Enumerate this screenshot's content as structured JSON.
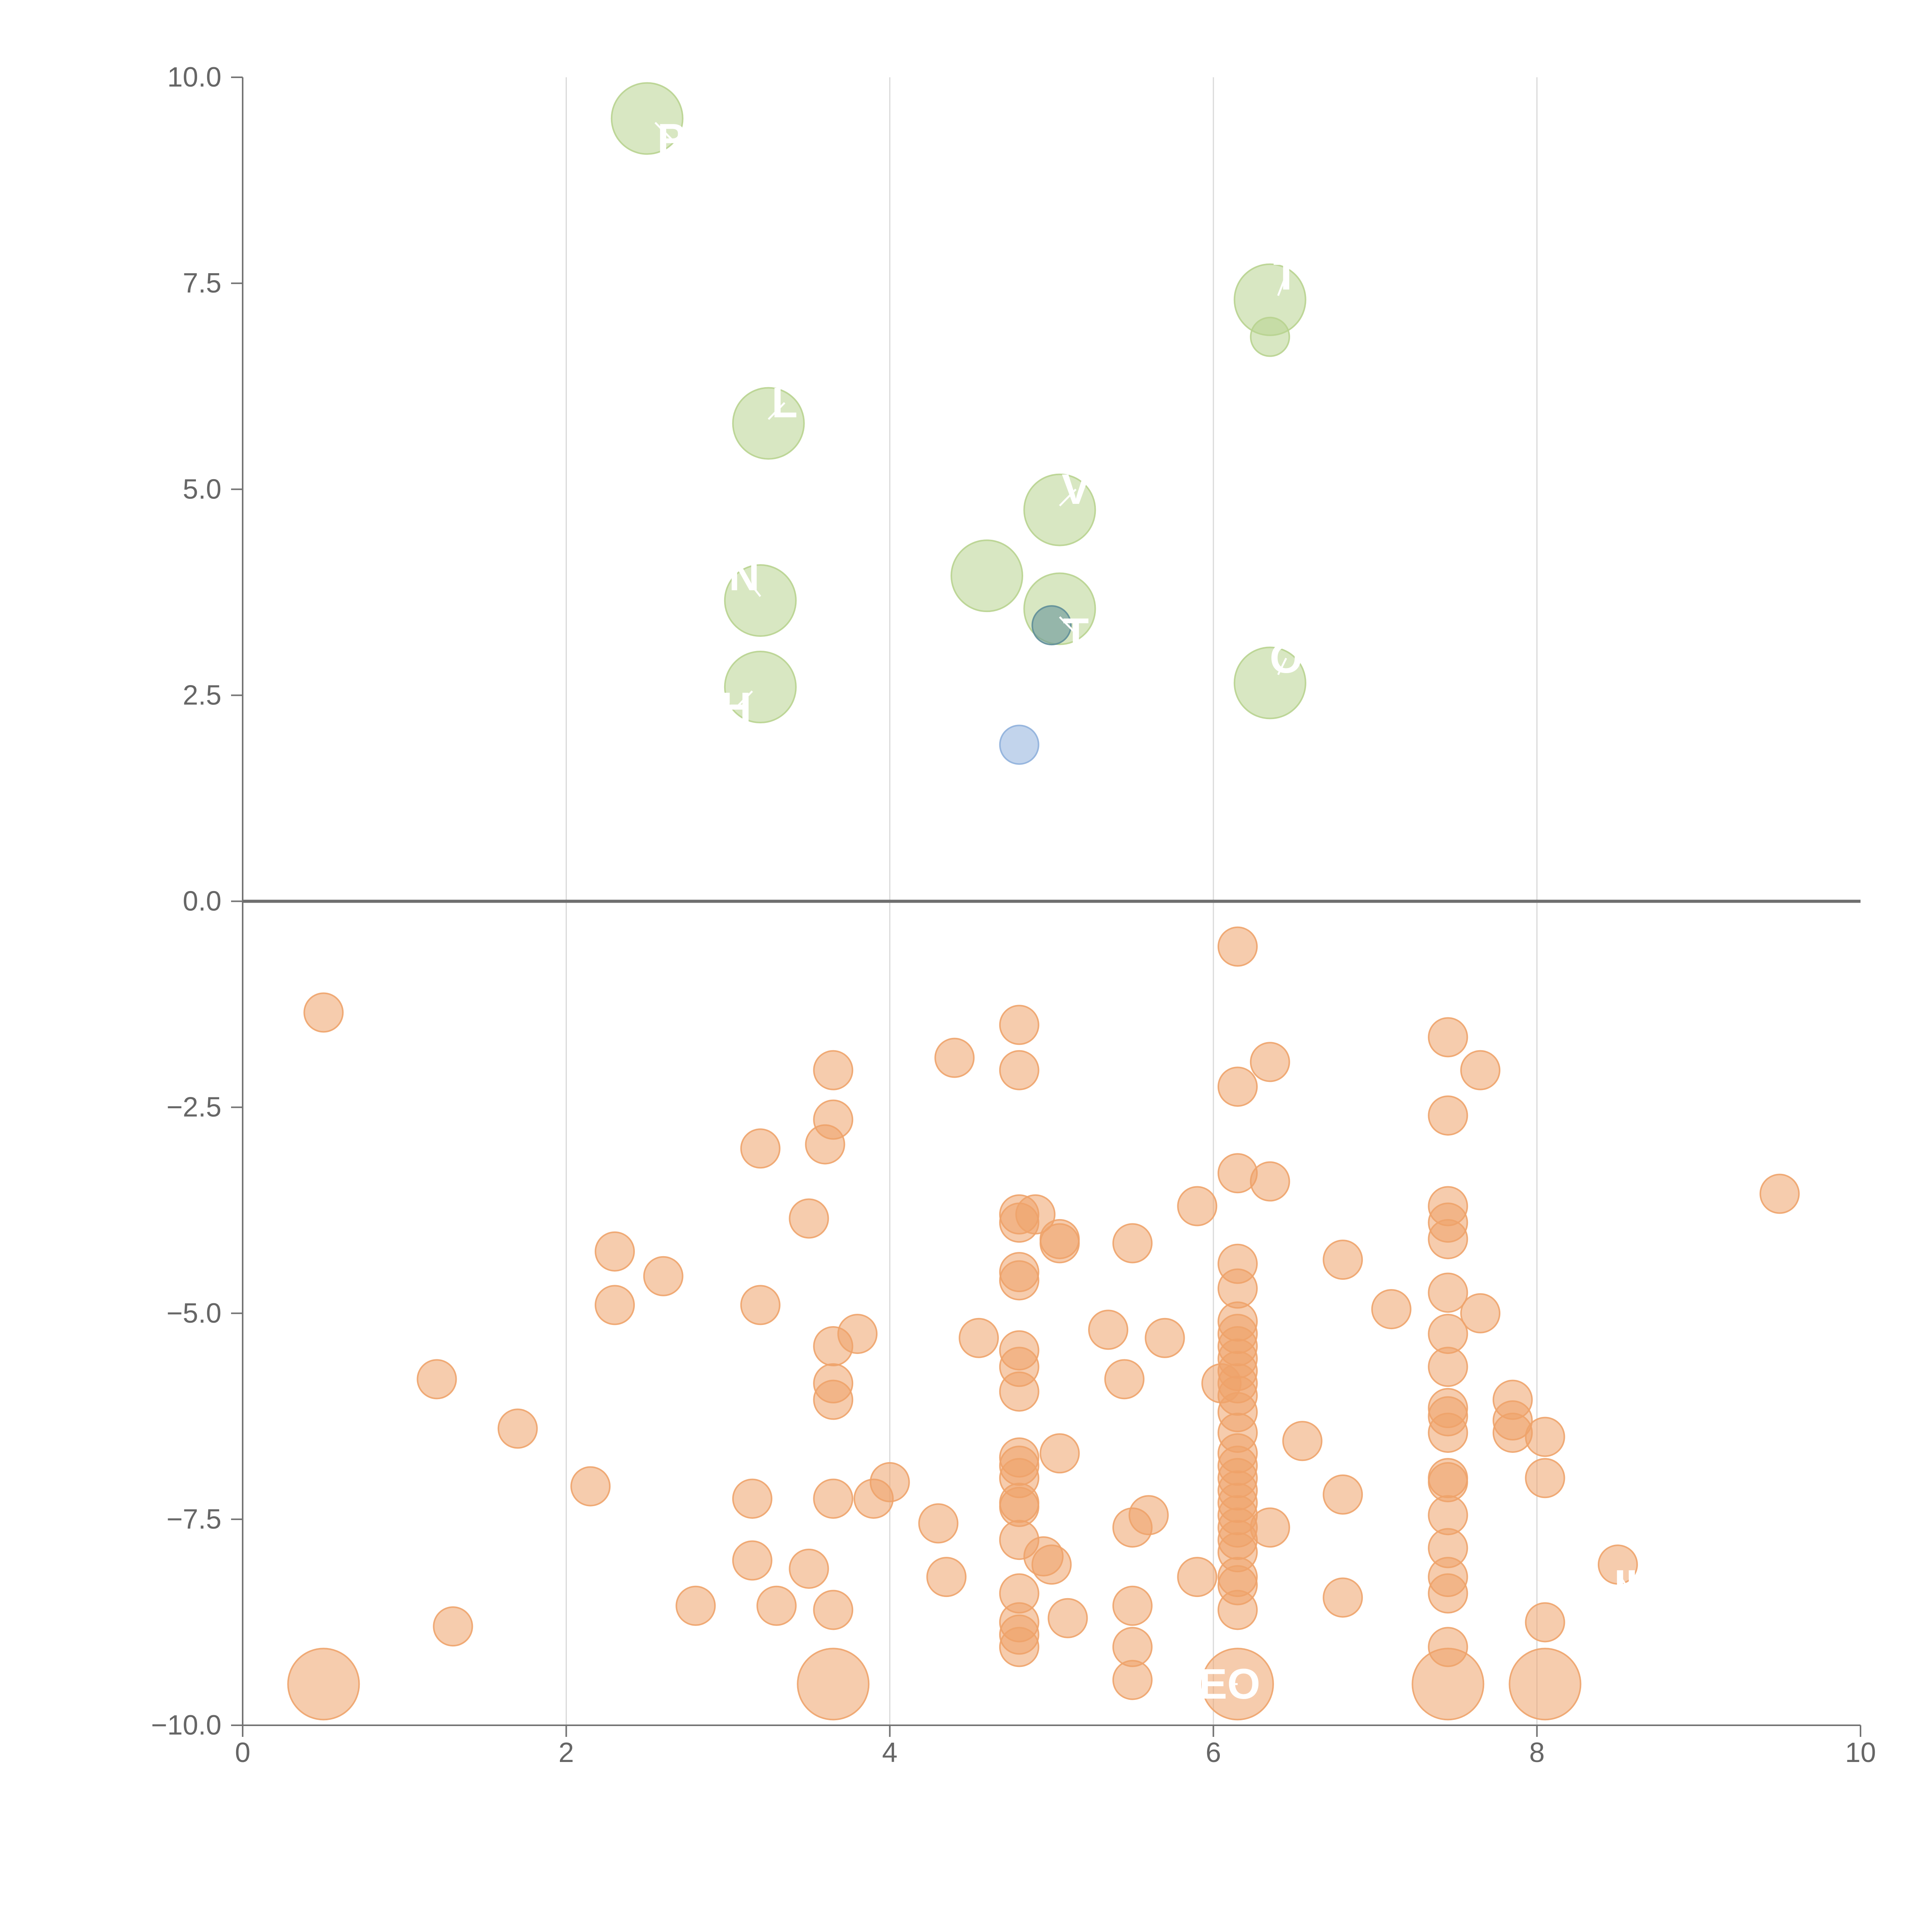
{
  "colors": {
    "positive": "#b8d38f",
    "negative": "#eea36a",
    "blue": "#8fb0dc",
    "teal": "#5f8e98",
    "grid": "#d9d9d9",
    "axis": "#737373",
    "zero_line": "#6e6e6e",
    "label": "#ffffff"
  },
  "chart_data": {
    "type": "scatter",
    "title": "",
    "xlabel": "",
    "ylabel": "",
    "xlim": [
      0,
      10
    ],
    "ylim": [
      -10,
      10
    ],
    "grid": "vertical",
    "x_ticks": [
      {
        "value": 0,
        "label": "0"
      },
      {
        "value": 2,
        "label": "2"
      },
      {
        "value": 4,
        "label": "4"
      },
      {
        "value": 6,
        "label": "6"
      },
      {
        "value": 8,
        "label": "8"
      },
      {
        "value": 10,
        "label": "10"
      }
    ],
    "y_ticks": [
      {
        "value": 10,
        "label": "10.0"
      },
      {
        "value": 7.5,
        "label": "7.5"
      },
      {
        "value": 5,
        "label": "5.0"
      },
      {
        "value": 2.5,
        "label": "2.5"
      },
      {
        "value": 0,
        "label": "0.0"
      },
      {
        "value": -2.5,
        "label": "−2.5"
      },
      {
        "value": -5,
        "label": "−5.0"
      },
      {
        "value": -7.5,
        "label": "−7.5"
      },
      {
        "value": -10,
        "label": "−10.0"
      }
    ],
    "series": [
      {
        "name": "positive",
        "color_key": "positive",
        "points": [
          [
            2.5,
            9.5,
            2
          ],
          [
            6.35,
            7.3,
            2
          ],
          [
            6.35,
            6.85,
            1
          ],
          [
            3.25,
            5.8,
            2
          ],
          [
            5.05,
            4.75,
            2
          ],
          [
            4.6,
            3.95,
            2
          ],
          [
            3.2,
            3.65,
            2
          ],
          [
            5.05,
            3.55,
            2
          ],
          [
            3.2,
            2.6,
            2
          ],
          [
            6.35,
            2.65,
            2
          ]
        ]
      },
      {
        "name": "blue",
        "color_key": "blue",
        "points": [
          [
            4.8,
            1.9,
            1
          ]
        ]
      },
      {
        "name": "teal",
        "color_key": "teal",
        "points": [
          [
            5.0,
            3.35,
            1
          ]
        ]
      },
      {
        "name": "negative",
        "color_key": "negative",
        "points": [
          [
            0.5,
            -9.5,
            2
          ],
          [
            3.65,
            -9.5,
            2
          ],
          [
            6.15,
            -9.5,
            2
          ],
          [
            7.45,
            -9.5,
            2
          ],
          [
            8.05,
            -9.5,
            2
          ],
          [
            0.5,
            -1.35,
            1
          ],
          [
            1.2,
            -5.8,
            1
          ],
          [
            1.3,
            -8.8,
            1
          ],
          [
            1.7,
            -6.4,
            1
          ],
          [
            2.15,
            -7.1,
            1
          ],
          [
            2.3,
            -4.9,
            1
          ],
          [
            2.3,
            -4.25,
            1
          ],
          [
            2.6,
            -4.55,
            1
          ],
          [
            2.8,
            -8.55,
            1
          ],
          [
            3.15,
            -7.25,
            1
          ],
          [
            3.15,
            -8.0,
            1
          ],
          [
            3.2,
            -3.0,
            1
          ],
          [
            3.2,
            -4.9,
            1
          ],
          [
            3.3,
            -8.55,
            1
          ],
          [
            3.5,
            -3.85,
            1
          ],
          [
            3.5,
            -8.1,
            1
          ],
          [
            3.6,
            -2.95,
            1
          ],
          [
            3.65,
            -2.05,
            1
          ],
          [
            3.65,
            -2.65,
            1
          ],
          [
            3.65,
            -5.4,
            1
          ],
          [
            3.65,
            -5.85,
            1
          ],
          [
            3.65,
            -6.05,
            1
          ],
          [
            3.65,
            -7.25,
            1
          ],
          [
            3.65,
            -8.6,
            1
          ],
          [
            3.8,
            -5.25,
            1
          ],
          [
            3.9,
            -7.25,
            1
          ],
          [
            4.0,
            -7.05,
            1
          ],
          [
            4.3,
            -7.55,
            1
          ],
          [
            4.35,
            -8.2,
            1
          ],
          [
            4.4,
            -1.9,
            1
          ],
          [
            4.55,
            -5.3,
            1
          ],
          [
            4.8,
            -1.5,
            1
          ],
          [
            4.8,
            -2.05,
            1
          ],
          [
            4.8,
            -3.8,
            1
          ],
          [
            4.8,
            -3.9,
            1
          ],
          [
            4.8,
            -4.5,
            1
          ],
          [
            4.8,
            -4.6,
            1
          ],
          [
            4.8,
            -5.45,
            1
          ],
          [
            4.8,
            -5.65,
            1
          ],
          [
            4.8,
            -5.95,
            1
          ],
          [
            4.8,
            -6.75,
            1
          ],
          [
            4.8,
            -6.85,
            1
          ],
          [
            4.8,
            -7.0,
            1
          ],
          [
            4.8,
            -7.3,
            1
          ],
          [
            4.8,
            -7.35,
            1
          ],
          [
            4.8,
            -7.75,
            1
          ],
          [
            4.8,
            -8.4,
            1
          ],
          [
            4.8,
            -8.75,
            1
          ],
          [
            4.8,
            -8.9,
            1
          ],
          [
            4.8,
            -9.05,
            1
          ],
          [
            4.9,
            -3.8,
            1
          ],
          [
            4.95,
            -7.95,
            1
          ],
          [
            5.0,
            -8.05,
            1
          ],
          [
            5.05,
            -4.1,
            1
          ],
          [
            5.05,
            -4.15,
            1
          ],
          [
            5.05,
            -6.7,
            1
          ],
          [
            5.1,
            -8.7,
            1
          ],
          [
            5.35,
            -5.2,
            1
          ],
          [
            5.5,
            -4.15,
            1
          ],
          [
            5.5,
            -7.6,
            1
          ],
          [
            5.5,
            -8.55,
            1
          ],
          [
            5.5,
            -9.05,
            1
          ],
          [
            5.5,
            -9.45,
            1
          ],
          [
            5.45,
            -5.8,
            1
          ],
          [
            5.6,
            -7.45,
            1
          ],
          [
            5.7,
            -5.3,
            1
          ],
          [
            5.9,
            -3.7,
            1
          ],
          [
            5.9,
            -8.2,
            1
          ],
          [
            6.15,
            -0.55,
            1
          ],
          [
            6.15,
            -2.25,
            1
          ],
          [
            6.15,
            -3.3,
            1
          ],
          [
            6.15,
            -4.4,
            1
          ],
          [
            6.15,
            -4.7,
            1
          ],
          [
            6.15,
            -5.1,
            1
          ],
          [
            6.15,
            -5.25,
            1
          ],
          [
            6.15,
            -5.4,
            1
          ],
          [
            6.15,
            -5.55,
            1
          ],
          [
            6.15,
            -5.7,
            1
          ],
          [
            6.15,
            -5.85,
            1
          ],
          [
            6.15,
            -6.0,
            1
          ],
          [
            6.15,
            -6.2,
            1
          ],
          [
            6.15,
            -6.45,
            1
          ],
          [
            6.15,
            -6.7,
            1
          ],
          [
            6.15,
            -6.85,
            1
          ],
          [
            6.15,
            -7.0,
            1
          ],
          [
            6.15,
            -7.15,
            1
          ],
          [
            6.15,
            -7.3,
            1
          ],
          [
            6.15,
            -7.45,
            1
          ],
          [
            6.15,
            -7.6,
            1
          ],
          [
            6.15,
            -7.75,
            1
          ],
          [
            6.15,
            -7.9,
            1
          ],
          [
            6.15,
            -8.2,
            1
          ],
          [
            6.15,
            -8.3,
            1
          ],
          [
            6.15,
            -8.6,
            1
          ],
          [
            6.05,
            -5.85,
            1
          ],
          [
            6.35,
            -1.95,
            1
          ],
          [
            6.35,
            -3.4,
            1
          ],
          [
            6.35,
            -7.6,
            1
          ],
          [
            6.55,
            -6.55,
            1
          ],
          [
            6.8,
            -4.35,
            1
          ],
          [
            6.8,
            -7.2,
            1
          ],
          [
            6.8,
            -8.45,
            1
          ],
          [
            7.1,
            -4.95,
            1
          ],
          [
            7.45,
            -1.65,
            1
          ],
          [
            7.45,
            -2.6,
            1
          ],
          [
            7.45,
            -3.7,
            1
          ],
          [
            7.45,
            -3.9,
            1
          ],
          [
            7.45,
            -4.1,
            1
          ],
          [
            7.45,
            -4.75,
            1
          ],
          [
            7.45,
            -5.25,
            1
          ],
          [
            7.45,
            -5.65,
            1
          ],
          [
            7.45,
            -6.15,
            1
          ],
          [
            7.45,
            -6.25,
            1
          ],
          [
            7.45,
            -6.45,
            1
          ],
          [
            7.45,
            -7.0,
            1
          ],
          [
            7.45,
            -7.05,
            1
          ],
          [
            7.45,
            -7.45,
            1
          ],
          [
            7.45,
            -7.85,
            1
          ],
          [
            7.45,
            -8.2,
            1
          ],
          [
            7.45,
            -8.4,
            1
          ],
          [
            7.45,
            -9.05,
            1
          ],
          [
            7.65,
            -2.05,
            1
          ],
          [
            7.65,
            -5.0,
            1
          ],
          [
            7.85,
            -6.05,
            1
          ],
          [
            7.85,
            -6.3,
            1
          ],
          [
            7.85,
            -6.45,
            1
          ],
          [
            8.05,
            -6.5,
            1
          ],
          [
            8.05,
            -7.0,
            1
          ],
          [
            8.05,
            -8.75,
            1
          ],
          [
            8.5,
            -8.05,
            1
          ],
          [
            9.5,
            -3.55,
            1
          ]
        ]
      }
    ],
    "annotations": [
      {
        "text": "P",
        "x": 2.65,
        "y": 9.25,
        "lx": 2.55,
        "ly": 9.45
      },
      {
        "text": "T",
        "x": 6.45,
        "y": 7.6,
        "lx": 6.4,
        "ly": 7.35
      },
      {
        "text": "L",
        "x": 3.35,
        "y": 6.05,
        "lx": 3.25,
        "ly": 5.85
      },
      {
        "text": "V",
        "x": 5.15,
        "y": 5.0,
        "lx": 5.05,
        "ly": 4.8
      },
      {
        "text": "N",
        "x": 3.1,
        "y": 3.95,
        "lx": 3.2,
        "ly": 3.7
      },
      {
        "text": "T",
        "x": 5.15,
        "y": 3.25,
        "lx": 5.05,
        "ly": 3.45
      },
      {
        "text": "H",
        "x": 3.05,
        "y": 2.35,
        "lx": 3.15,
        "ly": 2.55
      },
      {
        "text": "O",
        "x": 6.45,
        "y": 2.95,
        "lx": 6.4,
        "ly": 2.75
      },
      {
        "text": "EO",
        "x": 6.1,
        "y": -9.5,
        "lx": 6.15,
        "ly": -9.5
      },
      {
        "text": "II",
        "x": 8.55,
        "y": -8.3,
        "lx": 8.5,
        "ly": -8.15
      }
    ]
  }
}
